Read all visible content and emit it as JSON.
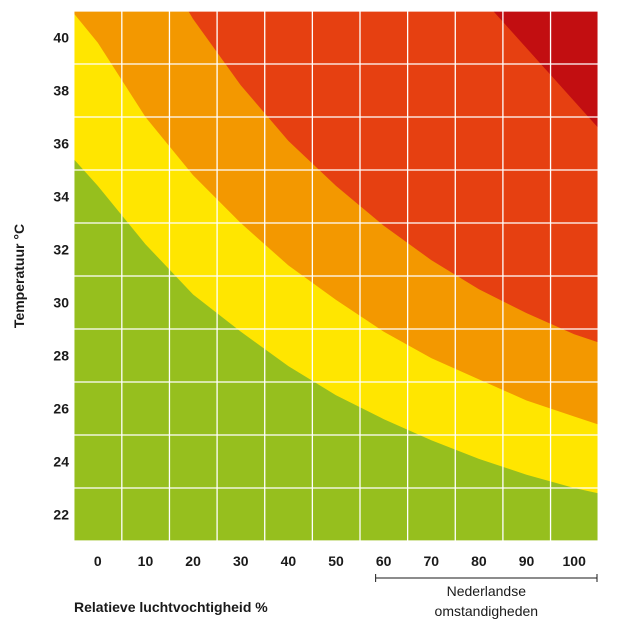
{
  "chart_data": {
    "type": "area",
    "ylabel": "Temperatuur °C",
    "xlabel": "Relatieve luchtvochtigheid %",
    "x_ticks": [
      0,
      10,
      20,
      30,
      40,
      50,
      60,
      70,
      80,
      90,
      100
    ],
    "y_ticks": [
      22,
      24,
      26,
      28,
      30,
      32,
      34,
      36,
      38,
      40
    ],
    "xlim": [
      -5,
      105
    ],
    "ylim": [
      21,
      41
    ],
    "grid": true,
    "annotation": {
      "line1": "Nederlandse",
      "line2": "omstandigheden",
      "x_range": [
        60,
        105
      ]
    },
    "zones": [
      {
        "color": "#96bf1e",
        "upper_boundary": [
          [
            -5,
            35.4
          ],
          [
            0,
            34.4
          ],
          [
            10,
            32.2
          ],
          [
            20,
            30.3
          ],
          [
            30,
            28.9
          ],
          [
            40,
            27.6
          ],
          [
            50,
            26.5
          ],
          [
            60,
            25.6
          ],
          [
            70,
            24.8
          ],
          [
            80,
            24.1
          ],
          [
            90,
            23.5
          ],
          [
            100,
            23.0
          ],
          [
            105,
            22.8
          ]
        ]
      },
      {
        "color": "#ffe600",
        "upper_boundary": [
          [
            -5,
            40.9
          ],
          [
            0,
            39.8
          ],
          [
            10,
            37.0
          ],
          [
            20,
            34.8
          ],
          [
            30,
            33.0
          ],
          [
            40,
            31.4
          ],
          [
            50,
            30.1
          ],
          [
            60,
            28.9
          ],
          [
            70,
            27.9
          ],
          [
            80,
            27.1
          ],
          [
            90,
            26.3
          ],
          [
            100,
            25.7
          ],
          [
            105,
            25.4
          ]
        ]
      },
      {
        "color": "#f39800",
        "upper_boundary": [
          [
            19,
            41.0
          ],
          [
            20,
            40.7
          ],
          [
            30,
            38.2
          ],
          [
            40,
            36.1
          ],
          [
            50,
            34.4
          ],
          [
            60,
            32.9
          ],
          [
            70,
            31.6
          ],
          [
            80,
            30.5
          ],
          [
            90,
            29.6
          ],
          [
            100,
            28.8
          ],
          [
            105,
            28.5
          ]
        ]
      },
      {
        "color": "#e64011",
        "upper_boundary": [
          [
            83,
            41.0
          ],
          [
            90,
            39.6
          ],
          [
            100,
            37.6
          ],
          [
            105,
            36.6
          ]
        ]
      },
      {
        "color": "#c20e11"
      }
    ]
  }
}
